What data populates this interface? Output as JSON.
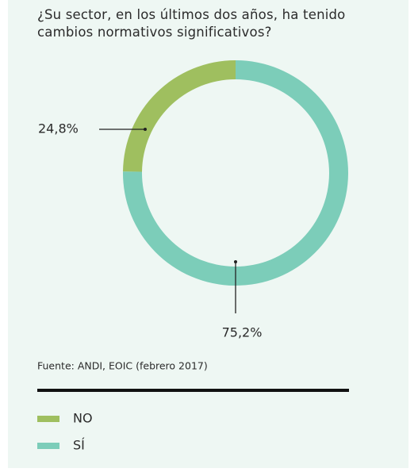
{
  "chart_data": {
    "type": "pie",
    "donut": true,
    "direction": "counterclockwise",
    "title": "¿Su sector, en los últimos dos años, ha tenido cambios normativos significativos?",
    "categories": [
      "NO",
      "SÍ"
    ],
    "values": [
      24.8,
      75.2
    ],
    "value_labels": [
      "24,8%",
      "75,2%"
    ],
    "colors": [
      "#9fbf5f",
      "#7ccdb9"
    ],
    "source": "Fuente: ANDI, EOIC (febrero 2017)",
    "legend": "bottom-left"
  }
}
